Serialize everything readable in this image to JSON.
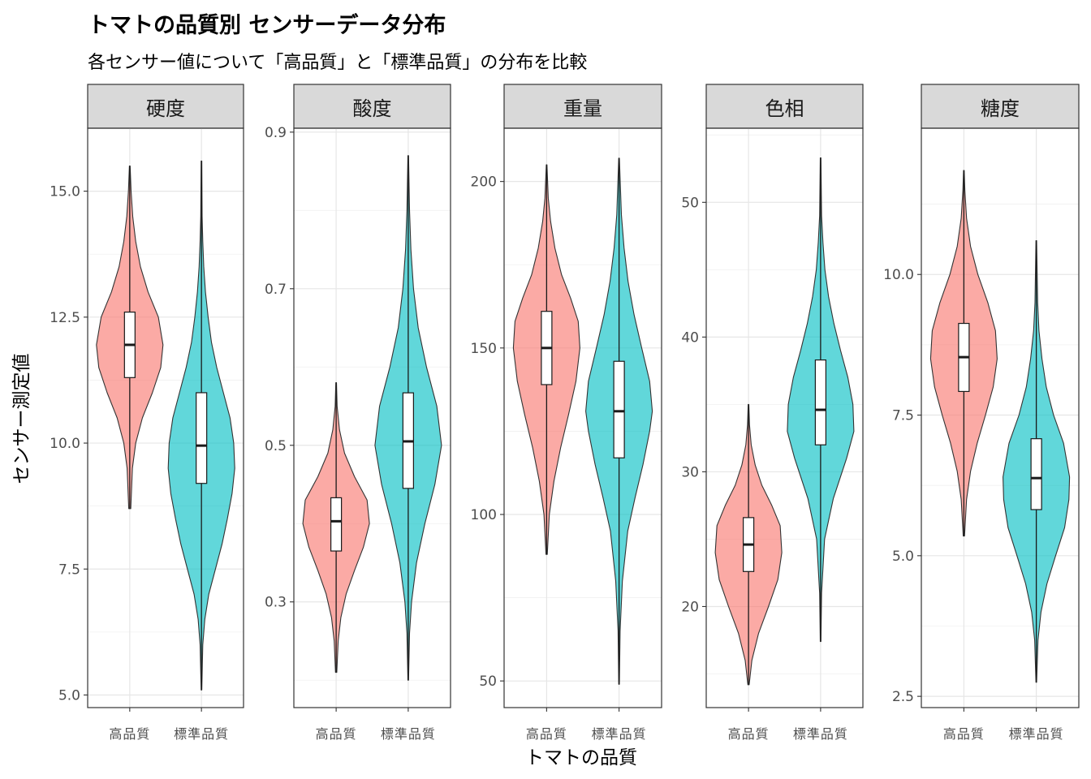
{
  "chart_data": {
    "type": "violin",
    "title": "トマトの品質別 センサーデータ分布",
    "subtitle": "各センサー値について「高品質」と「標準品質」の分布を比較",
    "xlabel": "トマトの品質",
    "ylabel": "センサー測定値",
    "categories": [
      "高品質",
      "標準品質"
    ],
    "colors": {
      "高品質": "#f8766d",
      "標準品質": "#00bfc4"
    },
    "grid": true,
    "panels": [
      {
        "name": "硬度",
        "ylim": [
          4.75,
          16.25
        ],
        "yticks": [
          5.0,
          7.5,
          10.0,
          12.5,
          15.0
        ],
        "yticklabels": [
          "5.0",
          "7.5",
          "10.0",
          "12.5",
          "15.0"
        ],
        "groups": [
          {
            "category": "高品質",
            "box": {
              "min": 8.7,
              "q1": 11.3,
              "median": 11.95,
              "q3": 12.6,
              "max": 15.5
            },
            "density": [
              [
                8.7,
                0.03
              ],
              [
                9.5,
                0.08
              ],
              [
                10.0,
                0.18
              ],
              [
                10.5,
                0.38
              ],
              [
                11.0,
                0.68
              ],
              [
                11.5,
                0.93
              ],
              [
                11.95,
                1.0
              ],
              [
                12.5,
                0.86
              ],
              [
                13.0,
                0.55
              ],
              [
                13.5,
                0.32
              ],
              [
                14.0,
                0.18
              ],
              [
                14.5,
                0.09
              ],
              [
                15.0,
                0.04
              ],
              [
                15.5,
                0.01
              ]
            ]
          },
          {
            "category": "標準品質",
            "box": {
              "min": 5.1,
              "q1": 9.2,
              "median": 9.95,
              "q3": 11.0,
              "max": 15.6
            },
            "density": [
              [
                5.1,
                0.01
              ],
              [
                6.0,
                0.04
              ],
              [
                6.5,
                0.1
              ],
              [
                7.0,
                0.22
              ],
              [
                7.5,
                0.42
              ],
              [
                8.0,
                0.62
              ],
              [
                8.5,
                0.78
              ],
              [
                9.0,
                0.92
              ],
              [
                9.5,
                1.0
              ],
              [
                10.0,
                0.97
              ],
              [
                10.5,
                0.86
              ],
              [
                11.0,
                0.66
              ],
              [
                11.5,
                0.46
              ],
              [
                12.0,
                0.3
              ],
              [
                12.5,
                0.2
              ],
              [
                13.0,
                0.12
              ],
              [
                13.5,
                0.07
              ],
              [
                14.0,
                0.04
              ],
              [
                14.5,
                0.02
              ],
              [
                15.6,
                0.01
              ]
            ]
          }
        ]
      },
      {
        "name": "酸度",
        "ylim": [
          0.165,
          0.905
        ],
        "yticks": [
          0.3,
          0.5,
          0.7,
          0.9
        ],
        "yticklabels": [
          "0.3",
          "0.5",
          "0.7",
          "0.9"
        ],
        "groups": [
          {
            "category": "高品質",
            "box": {
              "min": 0.21,
              "q1": 0.365,
              "median": 0.403,
              "q3": 0.433,
              "max": 0.58
            },
            "density": [
              [
                0.21,
                0.02
              ],
              [
                0.25,
                0.06
              ],
              [
                0.28,
                0.14
              ],
              [
                0.31,
                0.3
              ],
              [
                0.34,
                0.55
              ],
              [
                0.37,
                0.82
              ],
              [
                0.4,
                1.0
              ],
              [
                0.43,
                0.93
              ],
              [
                0.46,
                0.55
              ],
              [
                0.49,
                0.25
              ],
              [
                0.52,
                0.1
              ],
              [
                0.55,
                0.03
              ],
              [
                0.58,
                0.01
              ]
            ]
          },
          {
            "category": "標準品質",
            "box": {
              "min": 0.2,
              "q1": 0.445,
              "median": 0.505,
              "q3": 0.567,
              "max": 0.87
            },
            "density": [
              [
                0.2,
                0.01
              ],
              [
                0.26,
                0.04
              ],
              [
                0.3,
                0.1
              ],
              [
                0.35,
                0.25
              ],
              [
                0.4,
                0.5
              ],
              [
                0.45,
                0.8
              ],
              [
                0.5,
                1.0
              ],
              [
                0.55,
                0.86
              ],
              [
                0.6,
                0.55
              ],
              [
                0.65,
                0.3
              ],
              [
                0.7,
                0.16
              ],
              [
                0.75,
                0.08
              ],
              [
                0.8,
                0.04
              ],
              [
                0.87,
                0.01
              ]
            ]
          }
        ]
      },
      {
        "name": "重量",
        "ylim": [
          42,
          216
        ],
        "yticks": [
          50,
          100,
          150,
          200
        ],
        "yticklabels": [
          "50",
          "100",
          "150",
          "200"
        ],
        "groups": [
          {
            "category": "高品質",
            "box": {
              "min": 88,
              "q1": 139,
              "median": 150,
              "q3": 161,
              "max": 205
            },
            "density": [
              [
                88,
                0.02
              ],
              [
                100,
                0.08
              ],
              [
                110,
                0.22
              ],
              [
                120,
                0.42
              ],
              [
                130,
                0.66
              ],
              [
                140,
                0.88
              ],
              [
                150,
                1.0
              ],
              [
                158,
                0.95
              ],
              [
                165,
                0.72
              ],
              [
                172,
                0.45
              ],
              [
                180,
                0.25
              ],
              [
                188,
                0.12
              ],
              [
                195,
                0.05
              ],
              [
                205,
                0.01
              ]
            ]
          },
          {
            "category": "標準品質",
            "box": {
              "min": 49,
              "q1": 117,
              "median": 131,
              "q3": 146,
              "max": 207
            },
            "density": [
              [
                49,
                0.01
              ],
              [
                65,
                0.03
              ],
              [
                80,
                0.1
              ],
              [
                95,
                0.26
              ],
              [
                105,
                0.48
              ],
              [
                115,
                0.72
              ],
              [
                125,
                0.92
              ],
              [
                131,
                1.0
              ],
              [
                140,
                0.92
              ],
              [
                150,
                0.68
              ],
              [
                160,
                0.45
              ],
              [
                170,
                0.27
              ],
              [
                180,
                0.15
              ],
              [
                190,
                0.07
              ],
              [
                207,
                0.01
              ]
            ]
          }
        ]
      },
      {
        "name": "色相",
        "ylim": [
          12.5,
          55.5
        ],
        "yticks": [
          20,
          30,
          40,
          50
        ],
        "yticklabels": [
          "20",
          "30",
          "40",
          "50"
        ],
        "groups": [
          {
            "category": "高品質",
            "box": {
              "min": 14.2,
              "q1": 22.6,
              "median": 24.6,
              "q3": 26.6,
              "max": 35.0
            },
            "density": [
              [
                14.2,
                0.02
              ],
              [
                16,
                0.1
              ],
              [
                18,
                0.3
              ],
              [
                20,
                0.6
              ],
              [
                22,
                0.88
              ],
              [
                24,
                1.0
              ],
              [
                26,
                0.95
              ],
              [
                27.5,
                0.7
              ],
              [
                29,
                0.4
              ],
              [
                30.5,
                0.2
              ],
              [
                32,
                0.08
              ],
              [
                33.5,
                0.03
              ],
              [
                35,
                0.01
              ]
            ]
          },
          {
            "category": "標準品質",
            "box": {
              "min": 17.4,
              "q1": 32.0,
              "median": 34.6,
              "q3": 38.3,
              "max": 53.3
            },
            "density": [
              [
                17.4,
                0.01
              ],
              [
                21,
                0.03
              ],
              [
                25,
                0.12
              ],
              [
                28,
                0.38
              ],
              [
                31,
                0.78
              ],
              [
                33,
                1.0
              ],
              [
                35,
                0.97
              ],
              [
                37,
                0.82
              ],
              [
                39,
                0.6
              ],
              [
                41,
                0.4
              ],
              [
                43,
                0.24
              ],
              [
                45,
                0.13
              ],
              [
                47,
                0.07
              ],
              [
                49,
                0.03
              ],
              [
                53.3,
                0.01
              ]
            ]
          }
        ]
      },
      {
        "name": "糖度",
        "ylim": [
          2.3,
          12.6
        ],
        "yticks": [
          2.5,
          5.0,
          7.5,
          10.0
        ],
        "yticklabels": [
          "2.5",
          "5.0",
          "7.5",
          "10.0"
        ],
        "groups": [
          {
            "category": "高品質",
            "box": {
              "min": 5.35,
              "q1": 7.92,
              "median": 8.53,
              "q3": 9.13,
              "max": 11.85
            },
            "density": [
              [
                5.35,
                0.02
              ],
              [
                6.0,
                0.08
              ],
              [
                6.5,
                0.2
              ],
              [
                7.0,
                0.4
              ],
              [
                7.5,
                0.65
              ],
              [
                8.0,
                0.88
              ],
              [
                8.5,
                1.0
              ],
              [
                9.0,
                0.95
              ],
              [
                9.5,
                0.72
              ],
              [
                10.0,
                0.42
              ],
              [
                10.5,
                0.2
              ],
              [
                11.0,
                0.08
              ],
              [
                11.5,
                0.03
              ],
              [
                11.85,
                0.01
              ]
            ]
          },
          {
            "category": "標準品質",
            "box": {
              "min": 2.75,
              "q1": 5.82,
              "median": 6.38,
              "q3": 7.08,
              "max": 10.6
            },
            "density": [
              [
                2.75,
                0.01
              ],
              [
                3.5,
                0.05
              ],
              [
                4.0,
                0.14
              ],
              [
                4.5,
                0.32
              ],
              [
                5.0,
                0.58
              ],
              [
                5.5,
                0.85
              ],
              [
                6.0,
                0.98
              ],
              [
                6.4,
                1.0
              ],
              [
                7.0,
                0.82
              ],
              [
                7.5,
                0.52
              ],
              [
                8.0,
                0.3
              ],
              [
                8.5,
                0.17
              ],
              [
                9.0,
                0.08
              ],
              [
                9.5,
                0.04
              ],
              [
                10.6,
                0.01
              ]
            ]
          }
        ]
      }
    ]
  }
}
